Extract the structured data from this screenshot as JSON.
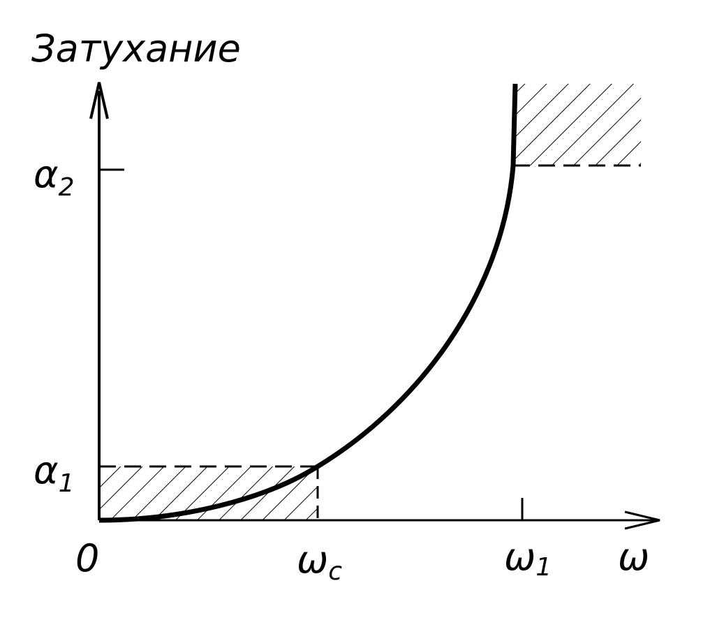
{
  "axis_title": "Затухание",
  "y_labels": [
    {
      "symbol": "α",
      "subscript": "2"
    },
    {
      "symbol": "α",
      "subscript": "1"
    }
  ],
  "x_labels": [
    {
      "symbol": "0"
    },
    {
      "symbol": "ω",
      "subscript": "c"
    },
    {
      "symbol": "ω",
      "subscript": "1"
    },
    {
      "symbol": "ω"
    }
  ]
}
